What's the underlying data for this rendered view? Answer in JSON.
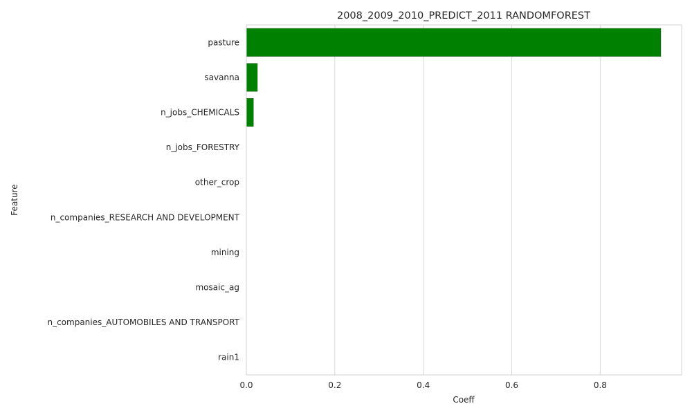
{
  "chart_data": {
    "type": "bar",
    "orientation": "horizontal",
    "title": "2008_2009_2010_PREDICT_2011 RANDOMFOREST",
    "xlabel": "Coeff",
    "ylabel": "Feature",
    "categories": [
      "pasture",
      "savanna",
      "n_jobs_CHEMICALS",
      "n_jobs_FORESTRY",
      "other_crop",
      "n_companies_RESEARCH AND DEVELOPMENT",
      "mining",
      "mosaic_ag",
      "n_companies_AUTOMOBILES AND TRANSPORT",
      "rain1"
    ],
    "values": [
      0.937,
      0.025,
      0.016,
      0.0,
      0.0,
      0.0,
      0.0,
      0.0,
      0.0,
      0.0
    ],
    "xlim": [
      0,
      0.984
    ],
    "xticks": [
      0.0,
      0.2,
      0.4,
      0.6,
      0.8
    ],
    "xtick_labels": [
      "0.0",
      "0.2",
      "0.4",
      "0.6",
      "0.8"
    ],
    "grid": "vertical",
    "bar_color": "#008000",
    "bar_edge_color": "#1f5f1f"
  }
}
